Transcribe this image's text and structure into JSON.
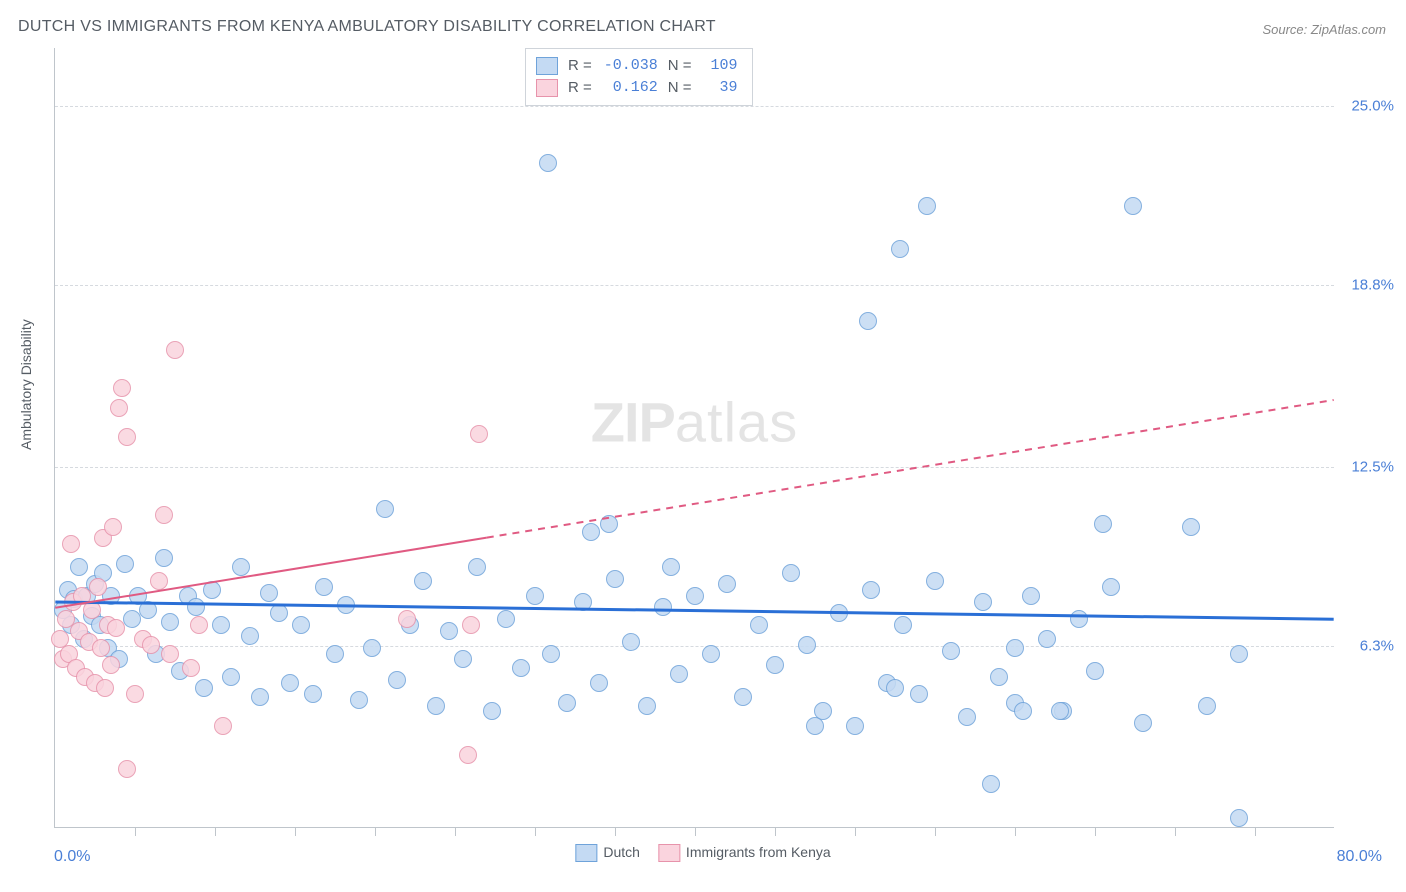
{
  "title": "DUTCH VS IMMIGRANTS FROM KENYA AMBULATORY DISABILITY CORRELATION CHART",
  "source": "Source: ZipAtlas.com",
  "ylabel": "Ambulatory Disability",
  "watermark_zip": "ZIP",
  "watermark_atlas": "atlas",
  "chart": {
    "type": "scatter",
    "xlim": [
      0,
      80
    ],
    "ylim": [
      0,
      27
    ],
    "x_tick_step": 5,
    "y_ticks": [
      6.3,
      12.5,
      18.8,
      25.0
    ],
    "y_tick_labels": [
      "6.3%",
      "12.5%",
      "18.8%",
      "25.0%"
    ],
    "x_min_label": "0.0%",
    "x_max_label": "80.0%",
    "grid_color": "#d6dadf",
    "axis_color": "#bfc5cb",
    "background_color": "#ffffff",
    "title_fontsize": 16,
    "label_fontsize": 14,
    "tick_fontsize": 15,
    "tick_label_color": "#4a7fd6",
    "marker_radius": 9,
    "marker_border_width": 1.5,
    "series": [
      {
        "name": "Dutch",
        "color_fill": "#c4daf3",
        "color_stroke": "#6fa3da",
        "legend_swatch_fill": "#c4daf3",
        "legend_swatch_stroke": "#6fa3da",
        "R": "-0.038",
        "N": "109",
        "trend": {
          "y_at_x0": 7.8,
          "y_at_x80": 7.2,
          "color": "#2a6fd6",
          "width": 3,
          "solid_until_x": 80,
          "dash": "0"
        },
        "points": [
          [
            0.5,
            7.5
          ],
          [
            0.8,
            8.2
          ],
          [
            1.0,
            7.0
          ],
          [
            1.2,
            7.9
          ],
          [
            1.5,
            9.0
          ],
          [
            1.8,
            6.5
          ],
          [
            2.0,
            8.0
          ],
          [
            2.3,
            7.3
          ],
          [
            2.5,
            8.4
          ],
          [
            2.8,
            7.0
          ],
          [
            3.0,
            8.8
          ],
          [
            3.3,
            6.2
          ],
          [
            3.5,
            8.0
          ],
          [
            4.0,
            5.8
          ],
          [
            4.4,
            9.1
          ],
          [
            4.8,
            7.2
          ],
          [
            5.2,
            8.0
          ],
          [
            5.8,
            7.5
          ],
          [
            6.3,
            6.0
          ],
          [
            6.8,
            9.3
          ],
          [
            7.2,
            7.1
          ],
          [
            7.8,
            5.4
          ],
          [
            8.3,
            8.0
          ],
          [
            8.8,
            7.6
          ],
          [
            9.3,
            4.8
          ],
          [
            9.8,
            8.2
          ],
          [
            10.4,
            7.0
          ],
          [
            11.0,
            5.2
          ],
          [
            11.6,
            9.0
          ],
          [
            12.2,
            6.6
          ],
          [
            12.8,
            4.5
          ],
          [
            13.4,
            8.1
          ],
          [
            14.0,
            7.4
          ],
          [
            14.7,
            5.0
          ],
          [
            15.4,
            7.0
          ],
          [
            16.1,
            4.6
          ],
          [
            16.8,
            8.3
          ],
          [
            17.5,
            6.0
          ],
          [
            18.2,
            7.7
          ],
          [
            19.0,
            4.4
          ],
          [
            19.8,
            6.2
          ],
          [
            20.6,
            11.0
          ],
          [
            21.4,
            5.1
          ],
          [
            22.2,
            7.0
          ],
          [
            23.0,
            8.5
          ],
          [
            23.8,
            4.2
          ],
          [
            24.6,
            6.8
          ],
          [
            25.5,
            5.8
          ],
          [
            26.4,
            9.0
          ],
          [
            27.3,
            4.0
          ],
          [
            28.2,
            7.2
          ],
          [
            29.1,
            5.5
          ],
          [
            30.0,
            8.0
          ],
          [
            30.8,
            23.0
          ],
          [
            31.0,
            6.0
          ],
          [
            32.0,
            4.3
          ],
          [
            33.0,
            7.8
          ],
          [
            33.5,
            10.2
          ],
          [
            34.0,
            5.0
          ],
          [
            34.6,
            10.5
          ],
          [
            35.0,
            8.6
          ],
          [
            36.0,
            6.4
          ],
          [
            37.0,
            4.2
          ],
          [
            38.0,
            7.6
          ],
          [
            38.5,
            9.0
          ],
          [
            39.0,
            5.3
          ],
          [
            40.0,
            8.0
          ],
          [
            41.0,
            6.0
          ],
          [
            42.0,
            8.4
          ],
          [
            43.0,
            4.5
          ],
          [
            44.0,
            7.0
          ],
          [
            45.0,
            5.6
          ],
          [
            46.0,
            8.8
          ],
          [
            47.0,
            6.3
          ],
          [
            48.0,
            4.0
          ],
          [
            49.0,
            7.4
          ],
          [
            50.0,
            3.5
          ],
          [
            50.8,
            17.5
          ],
          [
            51.0,
            8.2
          ],
          [
            52.0,
            5.0
          ],
          [
            52.8,
            20.0
          ],
          [
            53.0,
            7.0
          ],
          [
            54.0,
            4.6
          ],
          [
            54.5,
            21.5
          ],
          [
            55.0,
            8.5
          ],
          [
            56.0,
            6.1
          ],
          [
            57.0,
            3.8
          ],
          [
            58.0,
            7.8
          ],
          [
            58.5,
            1.5
          ],
          [
            59.0,
            5.2
          ],
          [
            60.0,
            4.3
          ],
          [
            61.0,
            8.0
          ],
          [
            62.0,
            6.5
          ],
          [
            63.0,
            4.0
          ],
          [
            64.0,
            7.2
          ],
          [
            65.0,
            5.4
          ],
          [
            65.5,
            10.5
          ],
          [
            66.0,
            8.3
          ],
          [
            67.4,
            21.5
          ],
          [
            68.0,
            3.6
          ],
          [
            71.0,
            10.4
          ],
          [
            72.0,
            4.2
          ],
          [
            74.0,
            0.3
          ],
          [
            74.0,
            6.0
          ],
          [
            60.5,
            4.0
          ],
          [
            52.5,
            4.8
          ],
          [
            47.5,
            3.5
          ],
          [
            60.0,
            6.2
          ],
          [
            62.8,
            4.0
          ]
        ]
      },
      {
        "name": "Immigrants from Kenya",
        "color_fill": "#fad4de",
        "color_stroke": "#e793ab",
        "legend_swatch_fill": "#fad4de",
        "legend_swatch_stroke": "#e793ab",
        "R": "0.162",
        "N": "39",
        "trend": {
          "y_at_x0": 7.6,
          "y_at_x80": 14.8,
          "color": "#e05a82",
          "width": 2,
          "solid_until_x": 27,
          "dash": "7 6"
        },
        "points": [
          [
            0.3,
            6.5
          ],
          [
            0.5,
            5.8
          ],
          [
            0.7,
            7.2
          ],
          [
            0.9,
            6.0
          ],
          [
            1.1,
            7.8
          ],
          [
            1.3,
            5.5
          ],
          [
            1.5,
            6.8
          ],
          [
            1.7,
            8.0
          ],
          [
            1.9,
            5.2
          ],
          [
            2.1,
            6.4
          ],
          [
            2.3,
            7.5
          ],
          [
            2.5,
            5.0
          ],
          [
            2.7,
            8.3
          ],
          [
            2.9,
            6.2
          ],
          [
            3.1,
            4.8
          ],
          [
            3.3,
            7.0
          ],
          [
            3.5,
            5.6
          ],
          [
            3.8,
            6.9
          ],
          [
            3.0,
            10.0
          ],
          [
            3.6,
            10.4
          ],
          [
            1.0,
            9.8
          ],
          [
            4.0,
            14.5
          ],
          [
            4.2,
            15.2
          ],
          [
            4.5,
            13.5
          ],
          [
            6.5,
            8.5
          ],
          [
            6.8,
            10.8
          ],
          [
            7.2,
            6.0
          ],
          [
            7.5,
            16.5
          ],
          [
            9.0,
            7.0
          ],
          [
            5.5,
            6.5
          ],
          [
            5.0,
            4.6
          ],
          [
            6.0,
            6.3
          ],
          [
            8.5,
            5.5
          ],
          [
            10.5,
            3.5
          ],
          [
            4.5,
            2.0
          ],
          [
            22.0,
            7.2
          ],
          [
            25.8,
            2.5
          ],
          [
            26.5,
            13.6
          ],
          [
            26.0,
            7.0
          ]
        ]
      }
    ]
  },
  "legend": {
    "series1_label": "Dutch",
    "series2_label": "Immigrants from Kenya"
  },
  "stats_box": {
    "r_label": "R =",
    "n_label": "N ="
  }
}
